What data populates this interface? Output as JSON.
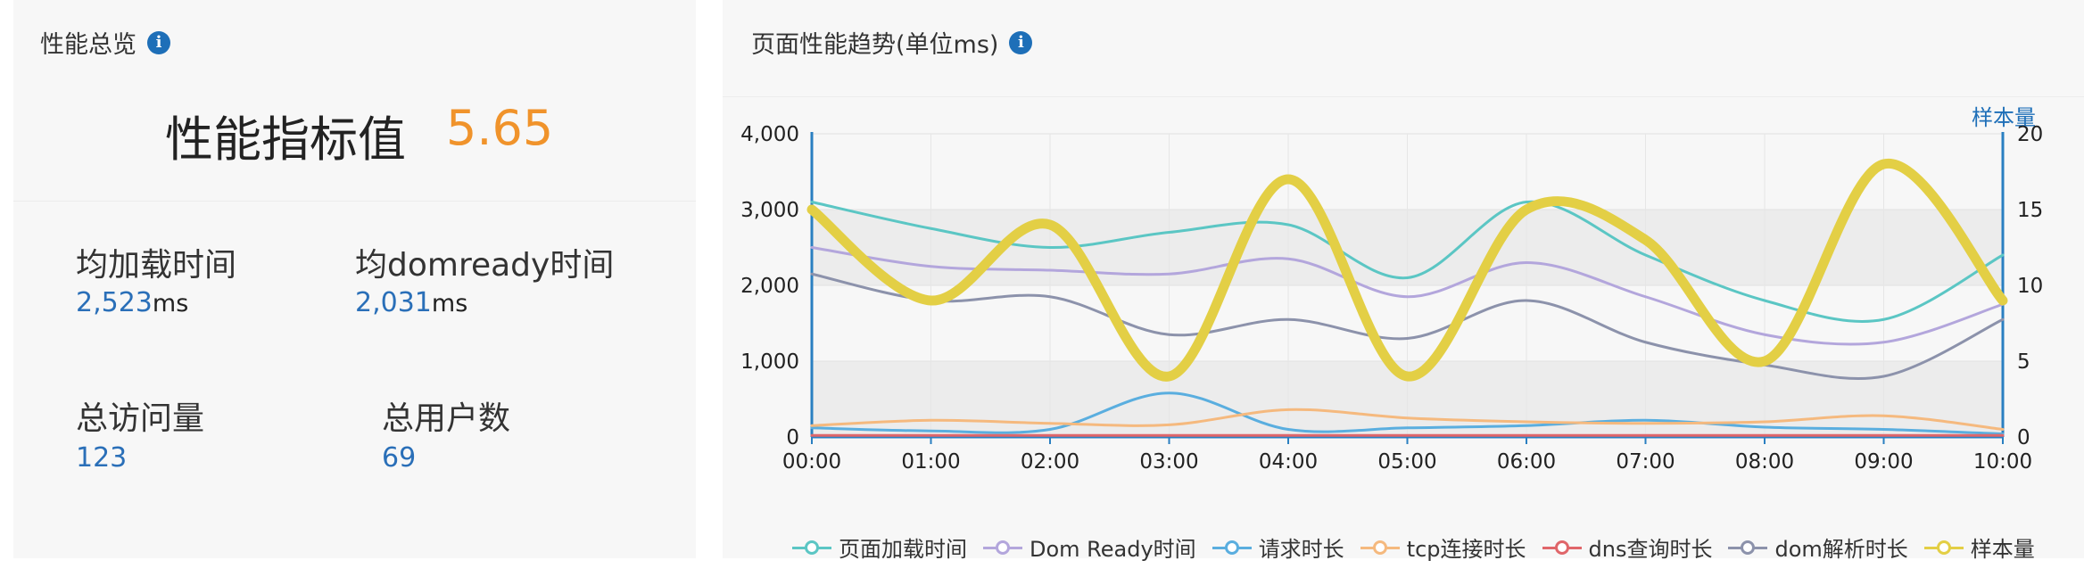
{
  "left_panel": {
    "header": "性能总览",
    "metric_title": "性能指标值",
    "metric_value": "5.65",
    "stats": [
      {
        "label": "均加载时间",
        "value": "2,523",
        "unit": "ms"
      },
      {
        "label": "均domready时间",
        "value": "2,031",
        "unit": "ms"
      },
      {
        "label": "总访问量",
        "value": "123",
        "unit": ""
      },
      {
        "label": "总用户数",
        "value": "69",
        "unit": ""
      }
    ]
  },
  "right_panel": {
    "header": "页面性能趋势(单位ms)"
  },
  "icons": {
    "info": "info-icon"
  },
  "colors": {
    "accent_blue": "#2a6fb8",
    "metric_orange": "#f0932b",
    "panel_bg": "#f7f7f7"
  },
  "chart_data": {
    "type": "line",
    "x": [
      "00:00",
      "01:00",
      "02:00",
      "03:00",
      "04:00",
      "05:00",
      "06:00",
      "07:00",
      "08:00",
      "09:00",
      "10:00"
    ],
    "y_left": {
      "ticks": [
        "0",
        "1,000",
        "2,000",
        "3,000",
        "4,000"
      ],
      "range": [
        0,
        4000
      ]
    },
    "y_right": {
      "title": "样本量",
      "ticks": [
        "0",
        "5",
        "10",
        "15",
        "20"
      ],
      "range": [
        0,
        20
      ]
    },
    "series": [
      {
        "name": "页面加载时间",
        "axis": "left",
        "color": "#5bc6c4",
        "width": 3,
        "values": [
          3100,
          2750,
          2500,
          2700,
          2800,
          2100,
          3100,
          2400,
          1800,
          1550,
          2400
        ]
      },
      {
        "name": "Dom Ready时间",
        "axis": "left",
        "color": "#b3a6dc",
        "width": 3,
        "values": [
          2500,
          2250,
          2200,
          2150,
          2350,
          1850,
          2300,
          1850,
          1350,
          1250,
          1750
        ]
      },
      {
        "name": "请求时长",
        "axis": "left",
        "color": "#5aaedf",
        "width": 3,
        "values": [
          120,
          80,
          100,
          580,
          100,
          120,
          150,
          220,
          130,
          100,
          40
        ]
      },
      {
        "name": "tcp连接时长",
        "axis": "left",
        "color": "#f5b97e",
        "width": 3,
        "values": [
          150,
          220,
          180,
          160,
          360,
          250,
          200,
          180,
          200,
          280,
          100
        ]
      },
      {
        "name": "dns查询时长",
        "axis": "left",
        "color": "#e0666a",
        "width": 3,
        "values": [
          20,
          20,
          20,
          20,
          20,
          20,
          20,
          20,
          20,
          20,
          20
        ]
      },
      {
        "name": "dom解析时长",
        "axis": "left",
        "color": "#8c92ab",
        "width": 3,
        "values": [
          2150,
          1800,
          1850,
          1350,
          1550,
          1300,
          1800,
          1250,
          950,
          800,
          1550
        ]
      },
      {
        "name": "样本量",
        "axis": "right",
        "color": "#e3cf45",
        "width": 11,
        "values": [
          15,
          9,
          14,
          4,
          17,
          4,
          15,
          13,
          5,
          18,
          9
        ]
      }
    ],
    "grid": true,
    "legend": "bottom"
  }
}
